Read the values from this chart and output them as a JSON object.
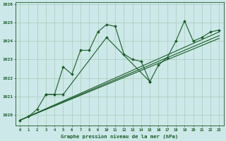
{
  "xlabel": "Graphe pression niveau de la mer (hPa)",
  "bg_color": "#cce8e8",
  "grid_color": "#aaccbb",
  "line_color": "#1a5c28",
  "x_ticks": [
    0,
    1,
    2,
    3,
    4,
    5,
    6,
    7,
    8,
    9,
    10,
    11,
    12,
    13,
    14,
    15,
    16,
    17,
    18,
    19,
    20,
    21,
    22,
    23
  ],
  "yticks": [
    1020,
    1021,
    1022,
    1023,
    1024,
    1025,
    1026
  ],
  "ylim": [
    1019.4,
    1026.1
  ],
  "xlim": [
    -0.5,
    23.5
  ],
  "series1_x": [
    0,
    1,
    2,
    3,
    4,
    5,
    6,
    7,
    8,
    9,
    10,
    11,
    12,
    13,
    14,
    15
  ],
  "series1_y": [
    1019.7,
    1019.9,
    1020.3,
    1021.1,
    1021.1,
    1022.6,
    1022.2,
    1023.5,
    1023.5,
    1024.5,
    1024.9,
    1024.8,
    1023.3,
    1023.0,
    1022.9,
    1021.8
  ],
  "series2_x": [
    3,
    4,
    5,
    10,
    15,
    16,
    17,
    18,
    19,
    20,
    21,
    22,
    23
  ],
  "series2_y": [
    1021.1,
    1021.1,
    1021.1,
    1024.2,
    1021.8,
    1022.7,
    1023.1,
    1024.0,
    1025.1,
    1024.0,
    1024.2,
    1024.5,
    1024.6
  ],
  "trend1_x": [
    0,
    23
  ],
  "trend1_y": [
    1019.7,
    1024.5
  ],
  "trend2_x": [
    0,
    23
  ],
  "trend2_y": [
    1019.7,
    1024.3
  ],
  "trend3_x": [
    0,
    23
  ],
  "trend3_y": [
    1019.7,
    1024.15
  ]
}
